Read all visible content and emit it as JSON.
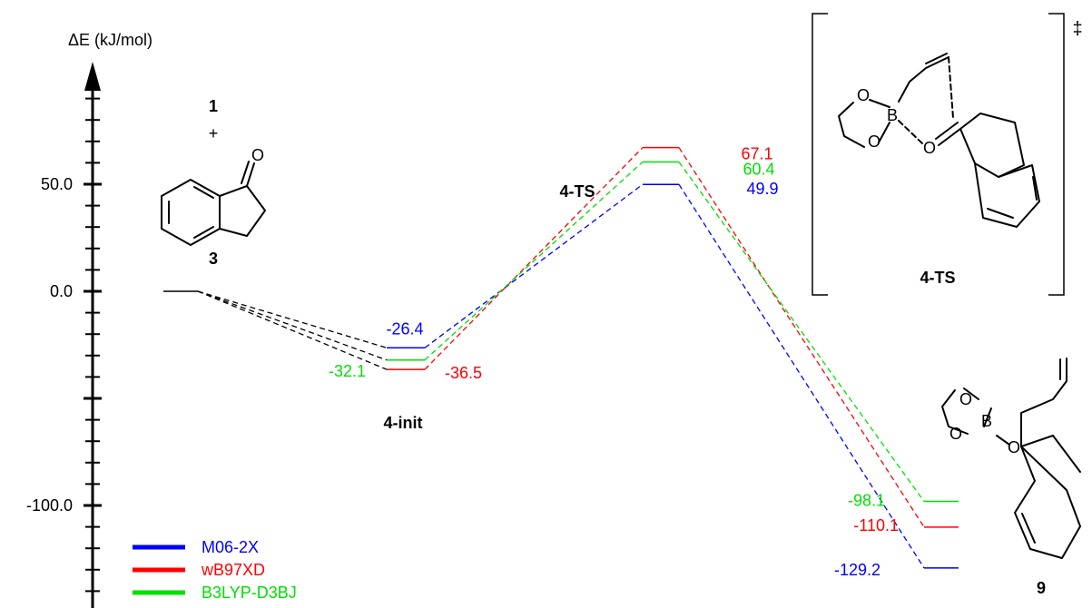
{
  "chart_data": {
    "type": "line",
    "ylabel": "ΔE (kJ/mol)",
    "y_ticks": [
      {
        "value": 50,
        "label": "50.0"
      },
      {
        "value": 0,
        "label": "0.0"
      },
      {
        "value": -100,
        "label": "-100.0"
      }
    ],
    "stages": [
      "1 + 3",
      "4-init",
      "4-TS",
      "9"
    ],
    "stage_labels": {
      "reactant_1": "1",
      "plus": "+",
      "reactant_3": "3",
      "init": "4-init",
      "ts": "4-TS",
      "product": "9",
      "ts_inset": "4-TS",
      "ts_dagger": "‡"
    },
    "series": [
      {
        "name": "M06-2X",
        "color": "#0000ff",
        "values": [
          0,
          -26.4,
          49.9,
          -129.2
        ],
        "labels": [
          "",
          "-26.4",
          "49.9",
          "-129.2"
        ]
      },
      {
        "name": "wB97XD",
        "color": "#ff0000",
        "values": [
          0,
          -36.5,
          67.1,
          -110.1
        ],
        "labels": [
          "",
          "-36.5",
          "67.1",
          "-110.1"
        ]
      },
      {
        "name": "B3LYP-D3BJ",
        "color": "#00e000",
        "values": [
          0,
          -32.1,
          60.4,
          -98.1
        ],
        "labels": [
          "",
          "-32.1",
          "60.4",
          "-98.1"
        ]
      }
    ],
    "grid": false,
    "legend": "bottom-left"
  },
  "molecules": {
    "o_atom": "O",
    "b_atom": "B"
  }
}
